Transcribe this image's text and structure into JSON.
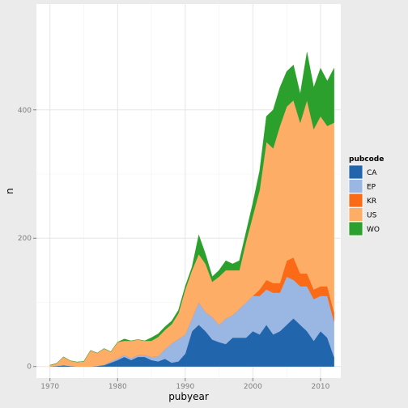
{
  "chart_data": {
    "type": "area",
    "stacked": true,
    "xlabel": "pubyear",
    "ylabel": "n",
    "xlim": [
      1968,
      2013
    ],
    "ylim": [
      -18,
      565
    ],
    "x_ticks": [
      1970,
      1980,
      1990,
      2000,
      2010
    ],
    "y_ticks": [
      0,
      200,
      400
    ],
    "grid": true,
    "legend": {
      "title": "pubcode",
      "placement": "right"
    },
    "x": [
      1970,
      1971,
      1972,
      1973,
      1974,
      1975,
      1976,
      1977,
      1978,
      1979,
      1980,
      1981,
      1982,
      1983,
      1984,
      1985,
      1986,
      1987,
      1988,
      1989,
      1990,
      1991,
      1992,
      1993,
      1994,
      1995,
      1996,
      1997,
      1998,
      1999,
      2000,
      2001,
      2002,
      2003,
      2004,
      2005,
      2006,
      2007,
      2008,
      2009,
      2010,
      2011,
      2012
    ],
    "series": [
      {
        "name": "CA",
        "color": "#2166ac",
        "values": [
          0,
          1,
          2,
          1,
          0,
          0,
          0,
          1,
          2,
          6,
          10,
          15,
          10,
          15,
          15,
          10,
          8,
          12,
          6,
          8,
          20,
          55,
          65,
          55,
          42,
          38,
          35,
          45,
          45,
          45,
          55,
          50,
          65,
          50,
          55,
          65,
          75,
          65,
          55,
          40,
          55,
          45,
          15
        ]
      },
      {
        "name": "EP",
        "color": "#9ab6e3",
        "values": [
          0,
          0,
          0,
          0,
          0,
          0,
          0,
          0,
          1,
          2,
          3,
          3,
          3,
          3,
          3,
          5,
          8,
          15,
          30,
          35,
          30,
          20,
          35,
          30,
          35,
          27,
          40,
          35,
          45,
          55,
          55,
          60,
          55,
          65,
          60,
          75,
          60,
          60,
          70,
          65,
          55,
          65,
          55
        ]
      },
      {
        "name": "KR",
        "color": "#fb6a17",
        "values": [
          0,
          0,
          0,
          0,
          0,
          0,
          0,
          0,
          0,
          0,
          0,
          0,
          0,
          0,
          0,
          0,
          0,
          0,
          0,
          0,
          0,
          0,
          0,
          0,
          0,
          0,
          0,
          0,
          0,
          0,
          0,
          10,
          15,
          15,
          15,
          25,
          35,
          20,
          20,
          15,
          15,
          15,
          15
        ]
      },
      {
        "name": "US",
        "color": "#fdad66",
        "values": [
          2,
          4,
          13,
          8,
          7,
          8,
          25,
          20,
          25,
          15,
          25,
          22,
          27,
          24,
          22,
          25,
          30,
          30,
          30,
          40,
          70,
          75,
          75,
          75,
          55,
          75,
          75,
          70,
          60,
          95,
          125,
          155,
          215,
          210,
          245,
          240,
          245,
          235,
          270,
          250,
          265,
          250,
          295
        ]
      },
      {
        "name": "WO",
        "color": "#2ca02c",
        "values": [
          0,
          0,
          0,
          0,
          0,
          0,
          0,
          0,
          0,
          0,
          0,
          3,
          0,
          0,
          0,
          5,
          5,
          5,
          5,
          5,
          5,
          5,
          30,
          15,
          8,
          10,
          15,
          10,
          15,
          15,
          20,
          30,
          40,
          60,
          60,
          55,
          55,
          45,
          75,
          65,
          75,
          70,
          85
        ]
      }
    ]
  }
}
